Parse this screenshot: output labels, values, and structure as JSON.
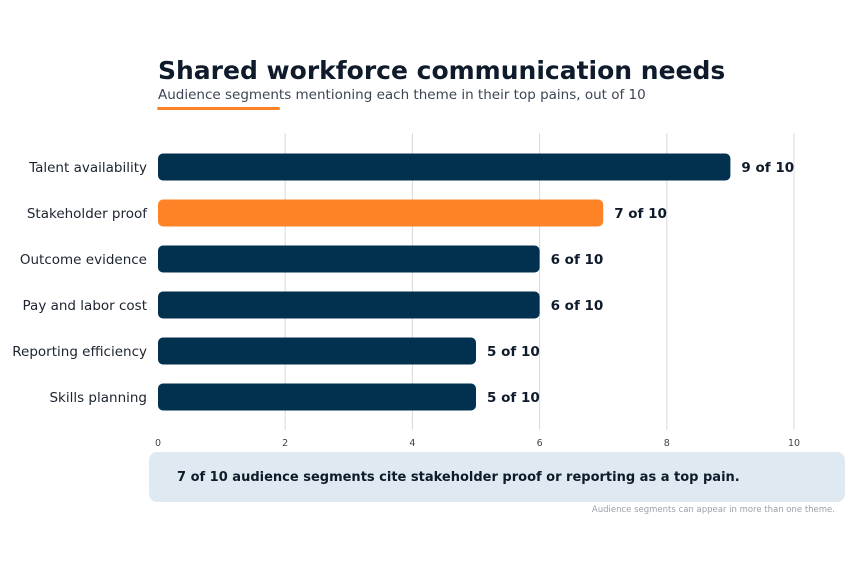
{
  "header": {
    "title": "Shared workforce communication needs",
    "subtitle": "Audience segments mentioning each theme in their top pains, out of 10"
  },
  "colors": {
    "primary": "#02304f",
    "highlight": "#fe8326",
    "grid": "#d9d9d9",
    "callout_bg": "#dfe9f2"
  },
  "chart_data": {
    "type": "bar",
    "orientation": "horizontal",
    "categories": [
      "Talent availability",
      "Stakeholder proof",
      "Outcome evidence",
      "Pay and labor cost",
      "Reporting efficiency",
      "Skills planning"
    ],
    "values": [
      9,
      7,
      6,
      6,
      5,
      5
    ],
    "data_labels": [
      "9 of 10",
      "7 of 10",
      "6 of 10",
      "6 of 10",
      "5 of 10",
      "5 of 10"
    ],
    "highlight_category": "Stakeholder proof",
    "xlim": [
      0,
      10
    ],
    "x_ticks": [
      "0",
      "2",
      "4",
      "6",
      "8",
      "10"
    ],
    "grid": true,
    "xlabel": "",
    "ylabel": ""
  },
  "callout": {
    "text": "7 of 10 audience segments cite stakeholder proof or reporting as a top pain."
  },
  "footnote": "Audience segments can appear in more than one theme."
}
